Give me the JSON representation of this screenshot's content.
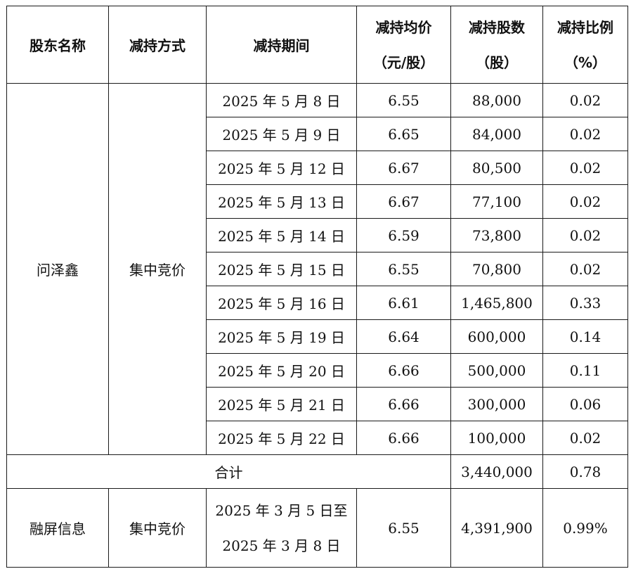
{
  "headers": {
    "holder": "股东名称",
    "method": "减持方式",
    "period": "减持期间",
    "avg_price_l1": "减持均价",
    "avg_price_l2": "（元/股）",
    "shares_l1": "减持股数",
    "shares_l2": "（股）",
    "ratio_l1": "减持比例",
    "ratio_l2": "（%）"
  },
  "group1": {
    "holder": "问泽鑫",
    "method": "集中竞价",
    "rows": [
      {
        "date": "2025 年 5 月 8 日",
        "price": "6.55",
        "shares": "88,000",
        "ratio": "0.02"
      },
      {
        "date": "2025 年 5 月 9 日",
        "price": "6.65",
        "shares": "84,000",
        "ratio": "0.02"
      },
      {
        "date": "2025 年 5 月 12 日",
        "price": "6.67",
        "shares": "80,500",
        "ratio": "0.02"
      },
      {
        "date": "2025 年 5 月 13 日",
        "price": "6.67",
        "shares": "77,100",
        "ratio": "0.02"
      },
      {
        "date": "2025 年 5 月 14 日",
        "price": "6.59",
        "shares": "73,800",
        "ratio": "0.02"
      },
      {
        "date": "2025 年 5 月 15 日",
        "price": "6.55",
        "shares": "70,800",
        "ratio": "0.02"
      },
      {
        "date": "2025 年 5 月 16 日",
        "price": "6.61",
        "shares": "1,465,800",
        "ratio": "0.33"
      },
      {
        "date": "2025 年 5 月 19 日",
        "price": "6.64",
        "shares": "600,000",
        "ratio": "0.14"
      },
      {
        "date": "2025 年 5 月 20 日",
        "price": "6.66",
        "shares": "500,000",
        "ratio": "0.11"
      },
      {
        "date": "2025 年 5 月 21 日",
        "price": "6.66",
        "shares": "300,000",
        "ratio": "0.06"
      },
      {
        "date": "2025 年 5 月 22 日",
        "price": "6.66",
        "shares": "100,000",
        "ratio": "0.02"
      }
    ]
  },
  "total": {
    "label": "合计",
    "shares": "3,440,000",
    "ratio": "0.78"
  },
  "group2": {
    "holder": "融屏信息",
    "method": "集中竞价",
    "date_l1": "2025 年 3 月 5 日至",
    "date_l2": "2025 年 3 月 8 日",
    "price": "6.55",
    "shares": "4,391,900",
    "ratio": "0.99%"
  }
}
